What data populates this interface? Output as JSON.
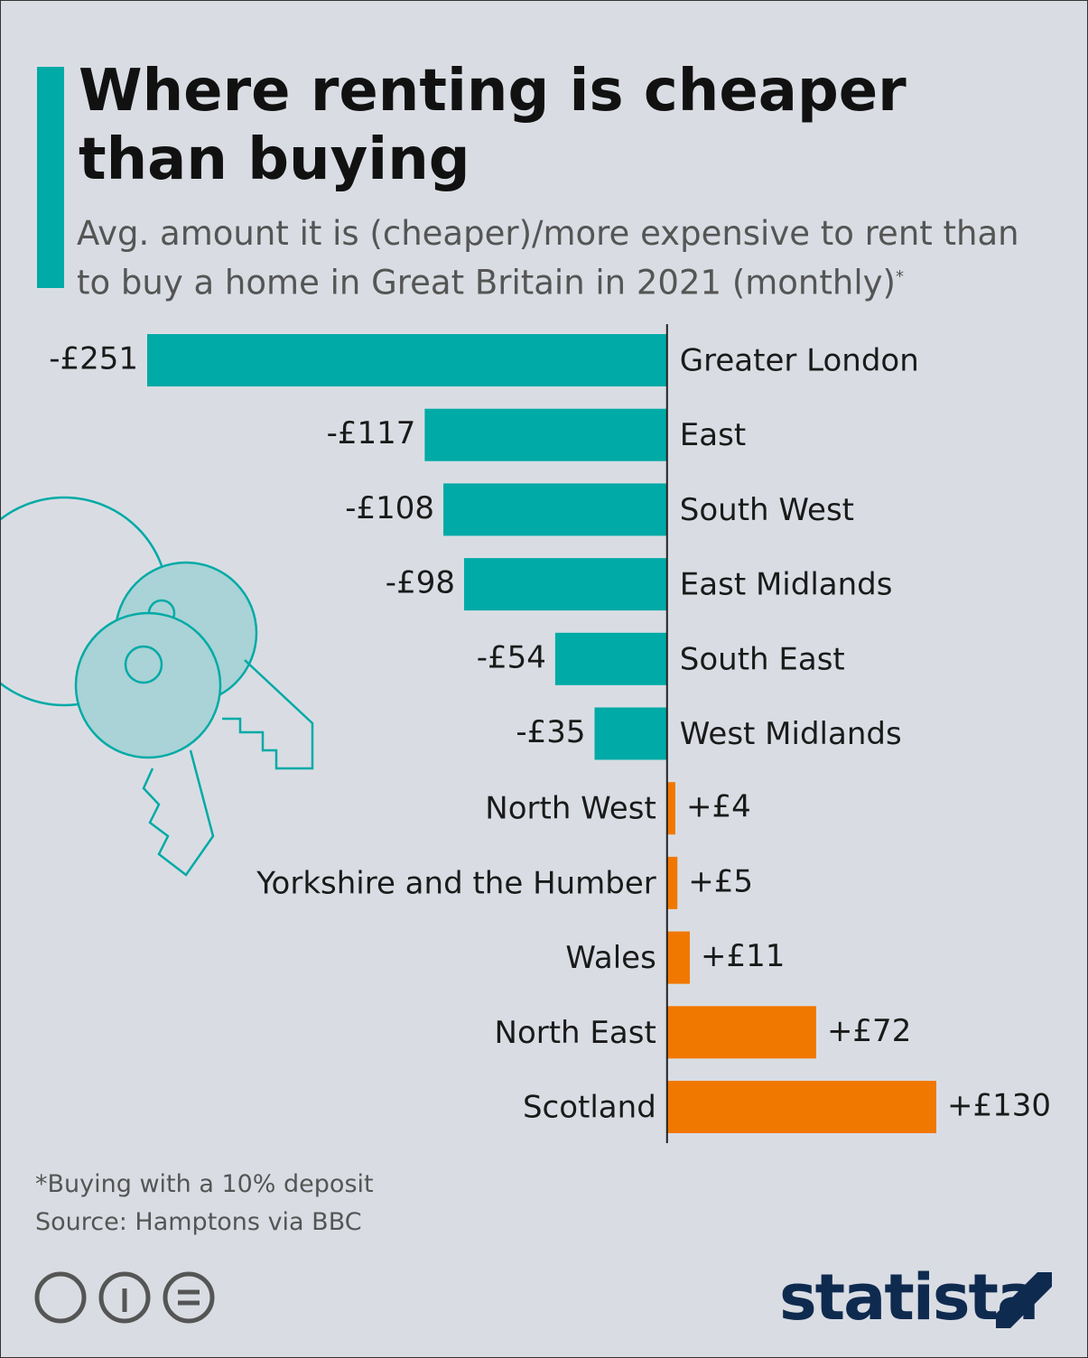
{
  "chart_data": {
    "type": "bar",
    "orientation": "horizontal",
    "title": "Where renting is cheaper than buying",
    "subtitle": "Avg. amount it is (cheaper)/more expensive to rent than to buy a home in Great Britain in 2021 (monthly)",
    "subtitle_marker": "*",
    "categories": [
      "Greater London",
      "East",
      "South West",
      "East Midlands",
      "South East",
      "West Midlands",
      "North West",
      "Yorkshire and the Humber",
      "Wales",
      "North East",
      "Scotland"
    ],
    "values": [
      -251,
      -117,
      -108,
      -98,
      -54,
      -35,
      4,
      5,
      11,
      72,
      130
    ],
    "value_labels": [
      "-£251",
      "-£117",
      "-£108",
      "-£98",
      "-£54",
      "-£35",
      "+£4",
      "+£5",
      "+£11",
      "+£72",
      "+£130"
    ],
    "negative_color": "#00aaa6",
    "positive_color": "#f07800",
    "xlim": [
      -251,
      130
    ],
    "footnote": "*Buying with a 10% deposit",
    "source": "Source: Hamptons via BBC",
    "brand": "statista"
  }
}
